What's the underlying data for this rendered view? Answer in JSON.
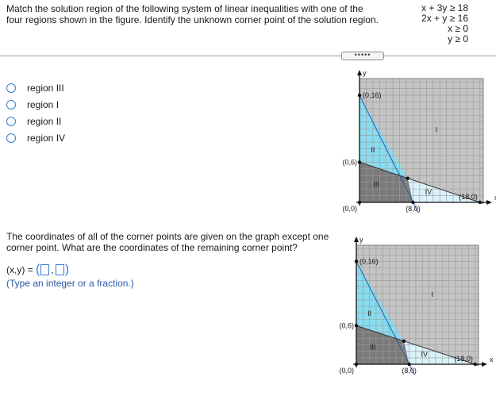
{
  "prompt": "Match the solution region of the following system of linear inequalities with one of the four regions shown in the figure. Identify the unknown corner point of the solution region.",
  "inequalities": [
    "x + 3y ≥ 18",
    "2x + y ≥ 16",
    "x ≥ 0",
    "y ≥ 0"
  ],
  "expand_button": "•••••",
  "options": [
    "region III",
    "region I",
    "region II",
    "region IV"
  ],
  "question2": "The coordinates of all of the corner points are given on the graph except one corner point. What are the coordinates of the remaining corner point?",
  "answer": {
    "prefix": "(x,y) =",
    "open": "(",
    "comma": ",",
    "close": ")"
  },
  "hint": "(Type an integer or a fraction.)",
  "graph": {
    "axis_y": "y",
    "axis_x": "x",
    "labels": {
      "p016": "(0,16)",
      "p06": "(0,6)",
      "p00": "(0,0)",
      "p80": "(8,0)",
      "p180": "(18,0)"
    },
    "regions": {
      "I": "I",
      "II": "II",
      "III": "III",
      "IV": "IV"
    },
    "colors": {
      "grid_bg": "#c4c4c4",
      "region_III": "#7a7a7a",
      "region_II": "#89dcf0",
      "region_IV": "#d9f3fb",
      "grid_line": "#9a9a9a",
      "line_color": "#2a5aa8"
    }
  }
}
